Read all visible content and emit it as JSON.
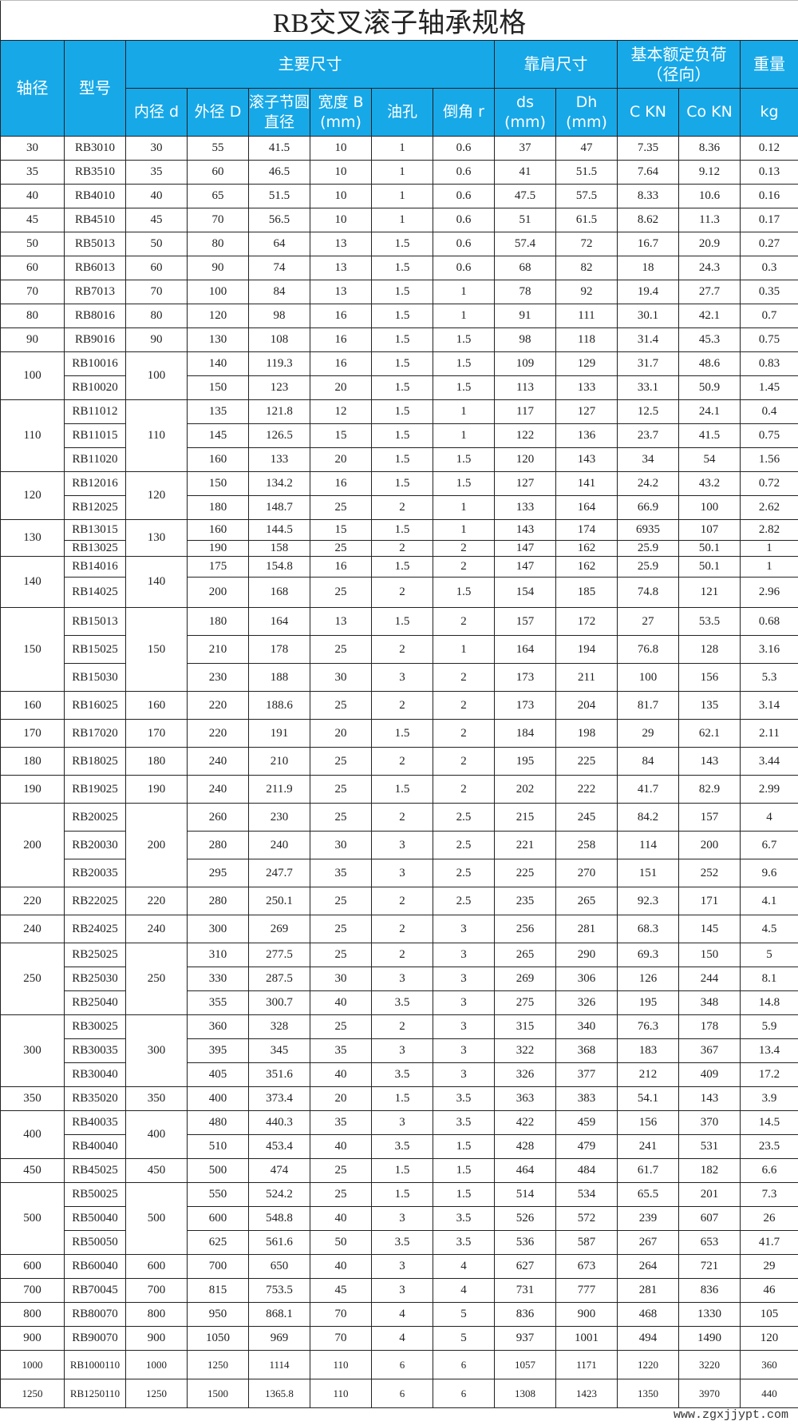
{
  "title": "RB交叉滚子轴承规格",
  "header": {
    "shaft": "轴径",
    "model": "型号",
    "main_dims": "主要尺寸",
    "shoulder_dims": "靠肩尺寸",
    "load_rating": "基本额定负荷（径向）",
    "weight": "重量",
    "sub": [
      "内径 d",
      "外径 D",
      "滚子节圆直径",
      "宽度 B (mm)",
      "油孔",
      "倒角 r",
      "ds (mm)",
      "Dh (mm)",
      "C KN",
      "Co KN",
      "kg"
    ]
  },
  "colors": {
    "header_bg": "#17a8e8",
    "header_text": "#ffffff"
  },
  "groups": [
    {
      "shaft": "30",
      "inner": "30",
      "rows": [
        [
          "RB3010",
          "55",
          "41.5",
          "10",
          "1",
          "0.6",
          "37",
          "47",
          "7.35",
          "8.36",
          "0.12"
        ]
      ]
    },
    {
      "shaft": "35",
      "inner": "35",
      "rows": [
        [
          "RB3510",
          "60",
          "46.5",
          "10",
          "1",
          "0.6",
          "41",
          "51.5",
          "7.64",
          "9.12",
          "0.13"
        ]
      ]
    },
    {
      "shaft": "40",
      "inner": "40",
      "rows": [
        [
          "RB4010",
          "65",
          "51.5",
          "10",
          "1",
          "0.6",
          "47.5",
          "57.5",
          "8.33",
          "10.6",
          "0.16"
        ]
      ]
    },
    {
      "shaft": "45",
      "inner": "45",
      "rows": [
        [
          "RB4510",
          "70",
          "56.5",
          "10",
          "1",
          "0.6",
          "51",
          "61.5",
          "8.62",
          "11.3",
          "0.17"
        ]
      ]
    },
    {
      "shaft": "50",
      "inner": "50",
      "rows": [
        [
          "RB5013",
          "80",
          "64",
          "13",
          "1.5",
          "0.6",
          "57.4",
          "72",
          "16.7",
          "20.9",
          "0.27"
        ]
      ]
    },
    {
      "shaft": "60",
      "inner": "60",
      "rows": [
        [
          "RB6013",
          "90",
          "74",
          "13",
          "1.5",
          "0.6",
          "68",
          "82",
          "18",
          "24.3",
          "0.3"
        ]
      ]
    },
    {
      "shaft": "70",
      "inner": "70",
      "rows": [
        [
          "RB7013",
          "100",
          "84",
          "13",
          "1.5",
          "1",
          "78",
          "92",
          "19.4",
          "27.7",
          "0.35"
        ]
      ]
    },
    {
      "shaft": "80",
      "inner": "80",
      "rows": [
        [
          "RB8016",
          "120",
          "98",
          "16",
          "1.5",
          "1",
          "91",
          "111",
          "30.1",
          "42.1",
          "0.7"
        ]
      ]
    },
    {
      "shaft": "90",
      "inner": "90",
      "rows": [
        [
          "RB9016",
          "130",
          "108",
          "16",
          "1.5",
          "1.5",
          "98",
          "118",
          "31.4",
          "45.3",
          "0.75"
        ]
      ]
    },
    {
      "shaft": "100",
      "inner": "100",
      "rows": [
        [
          "RB10016",
          "140",
          "119.3",
          "16",
          "1.5",
          "1.5",
          "109",
          "129",
          "31.7",
          "48.6",
          "0.83"
        ],
        [
          "RB10020",
          "150",
          "123",
          "20",
          "1.5",
          "1.5",
          "113",
          "133",
          "33.1",
          "50.9",
          "1.45"
        ]
      ]
    },
    {
      "shaft": "110",
      "inner": "110",
      "rows": [
        [
          "RB11012",
          "135",
          "121.8",
          "12",
          "1.5",
          "1",
          "117",
          "127",
          "12.5",
          "24.1",
          "0.4"
        ],
        [
          "RB11015",
          "145",
          "126.5",
          "15",
          "1.5",
          "1",
          "122",
          "136",
          "23.7",
          "41.5",
          "0.75"
        ],
        [
          "RB11020",
          "160",
          "133",
          "20",
          "1.5",
          "1.5",
          "120",
          "143",
          "34",
          "54",
          "1.56"
        ]
      ]
    },
    {
      "shaft": "120",
      "inner": "120",
      "rows": [
        [
          "RB12016",
          "150",
          "134.2",
          "16",
          "1.5",
          "1.5",
          "127",
          "141",
          "24.2",
          "43.2",
          "0.72"
        ],
        [
          "RB12025",
          "180",
          "148.7",
          "25",
          "2",
          "1",
          "133",
          "164",
          "66.9",
          "100",
          "2.62"
        ]
      ]
    },
    {
      "shaft": "130",
      "inner": "130",
      "rows": [
        [
          "RB13015",
          "160",
          "144.5",
          "15",
          "1.5",
          "1",
          "143",
          "174",
          "6935",
          "107",
          "2.82"
        ],
        [
          "RB13025",
          "190",
          "158",
          "25",
          "2",
          "2",
          "147",
          "162",
          "25.9",
          "50.1",
          "1"
        ]
      ]
    },
    {
      "shaft": "140",
      "inner": "140",
      "rows": [
        [
          "RB14016",
          "175",
          "154.8",
          "16",
          "1.5",
          "2",
          "147",
          "162",
          "25.9",
          "50.1",
          "1"
        ],
        [
          "RB14025",
          "200",
          "168",
          "25",
          "2",
          "1.5",
          "154",
          "185",
          "74.8",
          "121",
          "2.96"
        ]
      ]
    },
    {
      "shaft": "150",
      "inner": "150",
      "rows": [
        [
          "RB15013",
          "180",
          "164",
          "13",
          "1.5",
          "2",
          "157",
          "172",
          "27",
          "53.5",
          "0.68"
        ],
        [
          "RB15025",
          "210",
          "178",
          "25",
          "2",
          "1",
          "164",
          "194",
          "76.8",
          "128",
          "3.16"
        ],
        [
          "RB15030",
          "230",
          "188",
          "30",
          "3",
          "2",
          "173",
          "211",
          "100",
          "156",
          "5.3"
        ]
      ]
    },
    {
      "shaft": "160",
      "inner": "160",
      "rows": [
        [
          "RB16025",
          "220",
          "188.6",
          "25",
          "2",
          "2",
          "173",
          "204",
          "81.7",
          "135",
          "3.14"
        ]
      ]
    },
    {
      "shaft": "170",
      "inner": "170",
      "rows": [
        [
          "RB17020",
          "220",
          "191",
          "20",
          "1.5",
          "2",
          "184",
          "198",
          "29",
          "62.1",
          "2.11"
        ]
      ]
    },
    {
      "shaft": "180",
      "inner": "180",
      "rows": [
        [
          "RB18025",
          "240",
          "210",
          "25",
          "2",
          "2",
          "195",
          "225",
          "84",
          "143",
          "3.44"
        ]
      ]
    },
    {
      "shaft": "190",
      "inner": "190",
      "rows": [
        [
          "RB19025",
          "240",
          "211.9",
          "25",
          "1.5",
          "2",
          "202",
          "222",
          "41.7",
          "82.9",
          "2.99"
        ]
      ]
    },
    {
      "shaft": "200",
      "inner": "200",
      "rows": [
        [
          "RB20025",
          "260",
          "230",
          "25",
          "2",
          "2.5",
          "215",
          "245",
          "84.2",
          "157",
          "4"
        ],
        [
          "RB20030",
          "280",
          "240",
          "30",
          "3",
          "2.5",
          "221",
          "258",
          "114",
          "200",
          "6.7"
        ],
        [
          "RB20035",
          "295",
          "247.7",
          "35",
          "3",
          "2.5",
          "225",
          "270",
          "151",
          "252",
          "9.6"
        ]
      ]
    },
    {
      "shaft": "220",
      "inner": "220",
      "rows": [
        [
          "RB22025",
          "280",
          "250.1",
          "25",
          "2",
          "2.5",
          "235",
          "265",
          "92.3",
          "171",
          "4.1"
        ]
      ]
    },
    {
      "shaft": "240",
      "inner": "240",
      "rows": [
        [
          "RB24025",
          "300",
          "269",
          "25",
          "2",
          "3",
          "256",
          "281",
          "68.3",
          "145",
          "4.5"
        ]
      ]
    },
    {
      "shaft": "250",
      "inner": "250",
      "rows": [
        [
          "RB25025",
          "310",
          "277.5",
          "25",
          "2",
          "3",
          "265",
          "290",
          "69.3",
          "150",
          "5"
        ],
        [
          "RB25030",
          "330",
          "287.5",
          "30",
          "3",
          "3",
          "269",
          "306",
          "126",
          "244",
          "8.1"
        ],
        [
          "RB25040",
          "355",
          "300.7",
          "40",
          "3.5",
          "3",
          "275",
          "326",
          "195",
          "348",
          "14.8"
        ]
      ]
    },
    {
      "shaft": "300",
      "inner": "300",
      "rows": [
        [
          "RB30025",
          "360",
          "328",
          "25",
          "2",
          "3",
          "315",
          "340",
          "76.3",
          "178",
          "5.9"
        ],
        [
          "RB30035",
          "395",
          "345",
          "35",
          "3",
          "3",
          "322",
          "368",
          "183",
          "367",
          "13.4"
        ],
        [
          "RB30040",
          "405",
          "351.6",
          "40",
          "3.5",
          "3",
          "326",
          "377",
          "212",
          "409",
          "17.2"
        ]
      ]
    },
    {
      "shaft": "350",
      "inner": "350",
      "rows": [
        [
          "RB35020",
          "400",
          "373.4",
          "20",
          "1.5",
          "3.5",
          "363",
          "383",
          "54.1",
          "143",
          "3.9"
        ]
      ]
    },
    {
      "shaft": "400",
      "inner": "400",
      "rows": [
        [
          "RB40035",
          "480",
          "440.3",
          "35",
          "3",
          "3.5",
          "422",
          "459",
          "156",
          "370",
          "14.5"
        ],
        [
          "RB40040",
          "510",
          "453.4",
          "40",
          "3.5",
          "1.5",
          "428",
          "479",
          "241",
          "531",
          "23.5"
        ]
      ]
    },
    {
      "shaft": "450",
      "inner": "450",
      "rows": [
        [
          "RB45025",
          "500",
          "474",
          "25",
          "1.5",
          "1.5",
          "464",
          "484",
          "61.7",
          "182",
          "6.6"
        ]
      ]
    },
    {
      "shaft": "500",
      "inner": "500",
      "rows": [
        [
          "RB50025",
          "550",
          "524.2",
          "25",
          "1.5",
          "1.5",
          "514",
          "534",
          "65.5",
          "201",
          "7.3"
        ],
        [
          "RB50040",
          "600",
          "548.8",
          "40",
          "3",
          "3.5",
          "526",
          "572",
          "239",
          "607",
          "26"
        ],
        [
          "RB50050",
          "625",
          "561.6",
          "50",
          "3.5",
          "3.5",
          "536",
          "587",
          "267",
          "653",
          "41.7"
        ]
      ]
    },
    {
      "shaft": "600",
      "inner": "600",
      "rows": [
        [
          "RB60040",
          "700",
          "650",
          "40",
          "3",
          "4",
          "627",
          "673",
          "264",
          "721",
          "29"
        ]
      ]
    },
    {
      "shaft": "700",
      "inner": "700",
      "rows": [
        [
          "RB70045",
          "815",
          "753.5",
          "45",
          "3",
          "4",
          "731",
          "777",
          "281",
          "836",
          "46"
        ]
      ]
    },
    {
      "shaft": "800",
      "inner": "800",
      "rows": [
        [
          "RB80070",
          "950",
          "868.1",
          "70",
          "4",
          "5",
          "836",
          "900",
          "468",
          "1330",
          "105"
        ]
      ]
    },
    {
      "shaft": "900",
      "inner": "900",
      "rows": [
        [
          "RB90070",
          "1050",
          "969",
          "70",
          "4",
          "5",
          "937",
          "1001",
          "494",
          "1490",
          "120"
        ]
      ]
    },
    {
      "shaft": "1000",
      "inner": "1000",
      "rows": [
        [
          "RB1000110",
          "1250",
          "1114",
          "110",
          "6",
          "6",
          "1057",
          "1171",
          "1220",
          "3220",
          "360"
        ]
      ]
    },
    {
      "shaft": "1250",
      "inner": "1250",
      "rows": [
        [
          "RB1250110",
          "1500",
          "1365.8",
          "110",
          "6",
          "6",
          "1308",
          "1423",
          "1350",
          "3970",
          "440"
        ]
      ]
    }
  ],
  "watermark": "www.zgxjjypt.com"
}
